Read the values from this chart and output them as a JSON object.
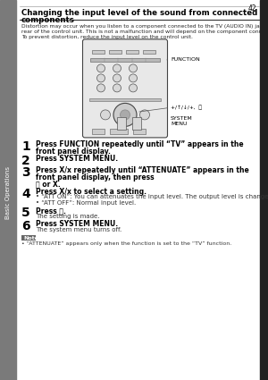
{
  "page_bg": "#ffffff",
  "sidebar_bg": "#7a7a7a",
  "sidebar_text": "Basic Operations",
  "sidebar_text_color": "#ffffff",
  "right_bar_bg": "#222222",
  "title_line1": "Changing the input level of the sound from connected",
  "title_line2": "components",
  "title_color": "#000000",
  "body_text_color": "#222222",
  "intro_lines": [
    "Distortion may occur when you listen to a component connected to the TV (AUDIO IN) jacks on the",
    "rear of the control unit. This is not a malfunction and will depend on the component connected.",
    "To prevent distortion, reduce the input level on the control unit."
  ],
  "steps": [
    {
      "num": "1",
      "bold": "Press FUNCTION repeatedly until “TV” appears in the front panel display."
    },
    {
      "num": "2",
      "bold": "Press SYSTEM MENU."
    },
    {
      "num": "3",
      "bold": "Press X/x repeatedly until “ATTENUATE” appears in the front panel display, then press",
      "bold2": "Ⓐ or X."
    },
    {
      "num": "4",
      "bold": "Press X/x to select a setting.",
      "bullets": [
        "• “ATT ON”: You can attenuates the input level. The output level is changed.",
        "• “ATT OFF”: Normal input level."
      ]
    },
    {
      "num": "5",
      "bold": "Press Ⓐ.",
      "sub": "The setting is made."
    },
    {
      "num": "6",
      "bold": "Press SYSTEM MENU.",
      "sub": "The system menu turns off."
    }
  ],
  "note_label": "Note",
  "note_label_bg": "#666666",
  "note_label_color": "#ffffff",
  "note_text": "• “ATTENUATE” appears only when the function is set to the “TV” function.",
  "remote_label_function": "FUNCTION",
  "remote_label_arrows": "+/↑/↓/+,  Ⓐ",
  "remote_label_system": "SYSTEM\nMENU",
  "page_num": "42"
}
